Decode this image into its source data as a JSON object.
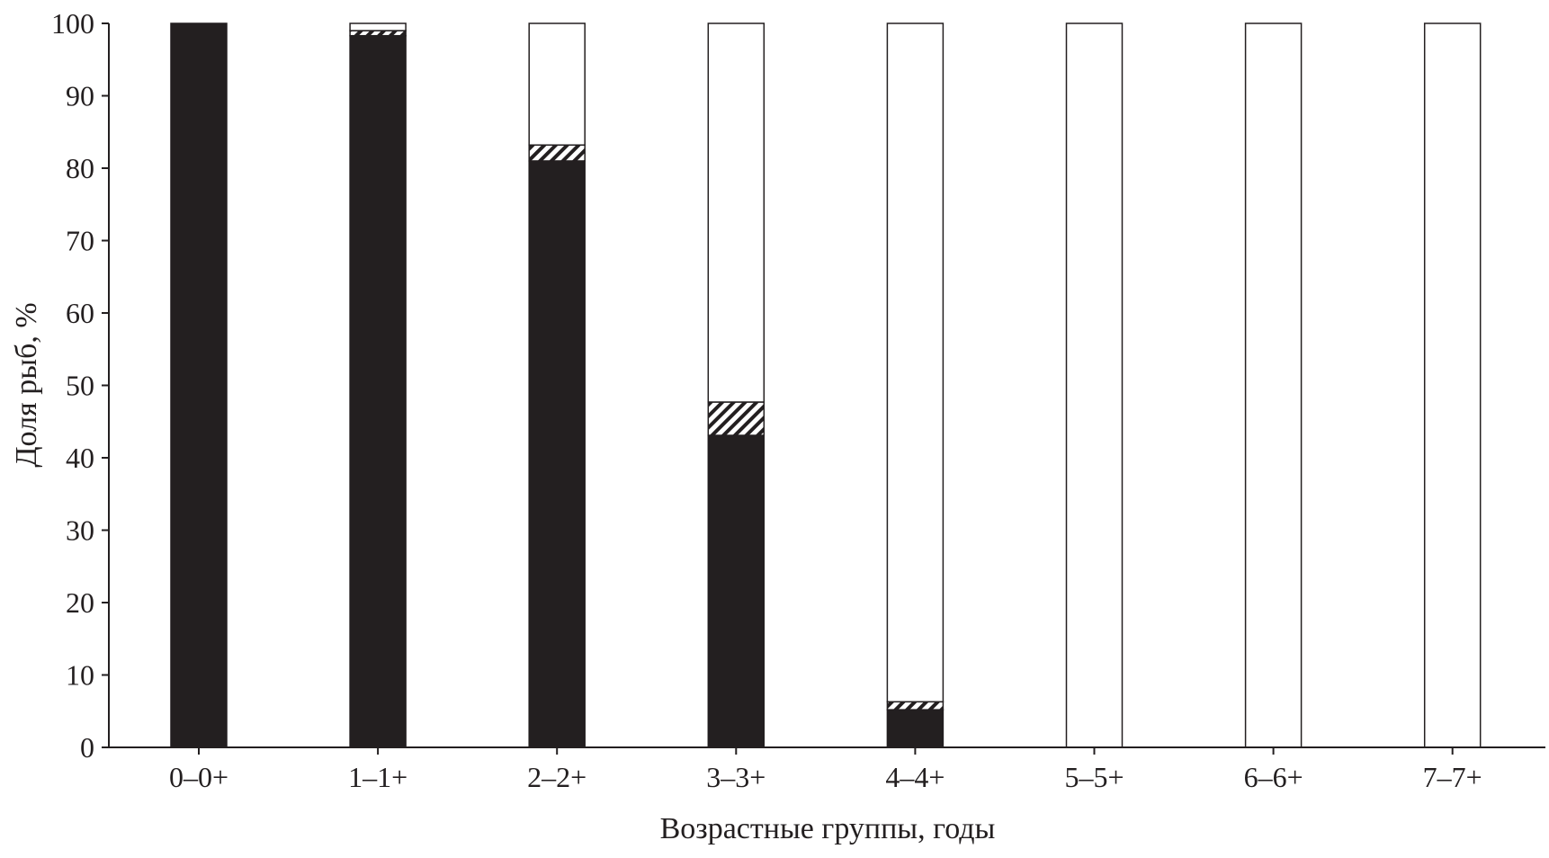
{
  "chart_data": {
    "type": "bar",
    "stacked": true,
    "title": "",
    "xlabel": "Возрастные группы, годы",
    "ylabel": "Доля рыб, %",
    "ylim": [
      0,
      100
    ],
    "yticks": [
      0,
      10,
      20,
      30,
      40,
      50,
      60,
      70,
      80,
      90,
      100
    ],
    "grid": false,
    "categories": [
      "0–0+",
      "1–1+",
      "2–2+",
      "3–3+",
      "4–4+",
      "5–5+",
      "6–6+",
      "7–7+"
    ],
    "series": [
      {
        "fill": "solid-black",
        "color": "#231f20",
        "values": [
          100,
          98.3,
          81.0,
          43.1,
          5.2,
          0,
          0,
          0
        ]
      },
      {
        "fill": "hatched",
        "color": "#231f20",
        "values": [
          0,
          0.7,
          2.2,
          4.6,
          1.1,
          0,
          0,
          0
        ]
      },
      {
        "fill": "white",
        "color": "#ffffff",
        "values": [
          0,
          1.0,
          16.8,
          52.3,
          93.7,
          100,
          100,
          100
        ]
      }
    ]
  }
}
